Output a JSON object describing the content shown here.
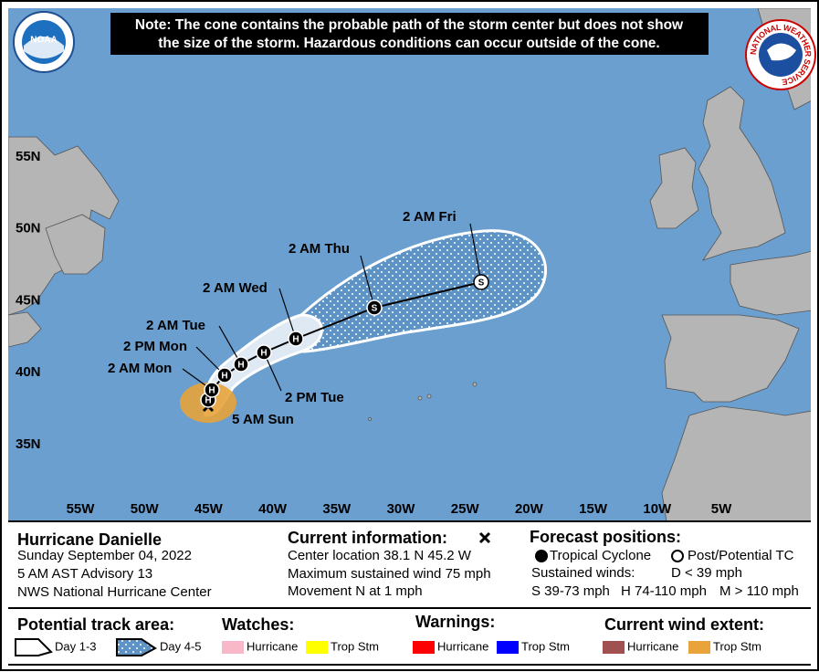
{
  "note": [
    "Note: The cone contains the probable path of the storm center but does not show",
    "the size of the storm. Hazardous conditions can occur outside of the cone."
  ],
  "logos": {
    "noaa": "NOAA",
    "nws": "NATIONAL WEATHER SERVICE"
  },
  "map": {
    "latitude_labels": [
      "55N",
      "50N",
      "45N",
      "40N",
      "35N"
    ],
    "longitude_labels": [
      "55W",
      "50W",
      "45W",
      "40W",
      "35W",
      "30W",
      "25W",
      "20W",
      "15W",
      "10W",
      "5W"
    ],
    "forecast_points": [
      {
        "time": "5 AM Sun",
        "symbol": "H"
      },
      {
        "time": "2 AM Mon",
        "symbol": "H"
      },
      {
        "time": "2 PM Mon",
        "symbol": "H"
      },
      {
        "time": "2 AM Tue",
        "symbol": "H"
      },
      {
        "time": "2 PM Tue",
        "symbol": "H"
      },
      {
        "time": "2 AM Wed",
        "symbol": "H"
      },
      {
        "time": "2 AM Thu",
        "symbol": "S"
      },
      {
        "time": "2 AM Fri",
        "symbol": "S"
      }
    ]
  },
  "storm": {
    "name": "Hurricane Danielle",
    "date": "Sunday September 04, 2022",
    "advisory": "5 AM AST Advisory 13",
    "center": "NWS National Hurricane Center"
  },
  "current": {
    "title": "Current information:",
    "lines": [
      "Center location 38.1 N 45.2 W",
      "Maximum sustained wind 75 mph",
      "Movement N at 1 mph"
    ]
  },
  "forecast": {
    "title": "Forecast positions:",
    "tropical": "Tropical Cyclone",
    "post": "Post/Potential TC",
    "sustained": "Sustained winds:",
    "d": "D < 39 mph",
    "s": "S 39-73 mph",
    "h": "H 74-110 mph",
    "m": "M > 110 mph"
  },
  "legend": {
    "track_title": "Potential track area:",
    "day13": "Day 1-3",
    "day45": "Day 4-5",
    "watches": {
      "title": "Watches:",
      "hurricane": "Hurricane",
      "trop": "Trop Stm"
    },
    "warnings": {
      "title": "Warnings:",
      "hurricane": "Hurricane",
      "trop": "Trop Stm"
    },
    "wind": {
      "title": "Current wind extent:",
      "hurricane": "Hurricane",
      "trop": "Trop Stm"
    }
  }
}
